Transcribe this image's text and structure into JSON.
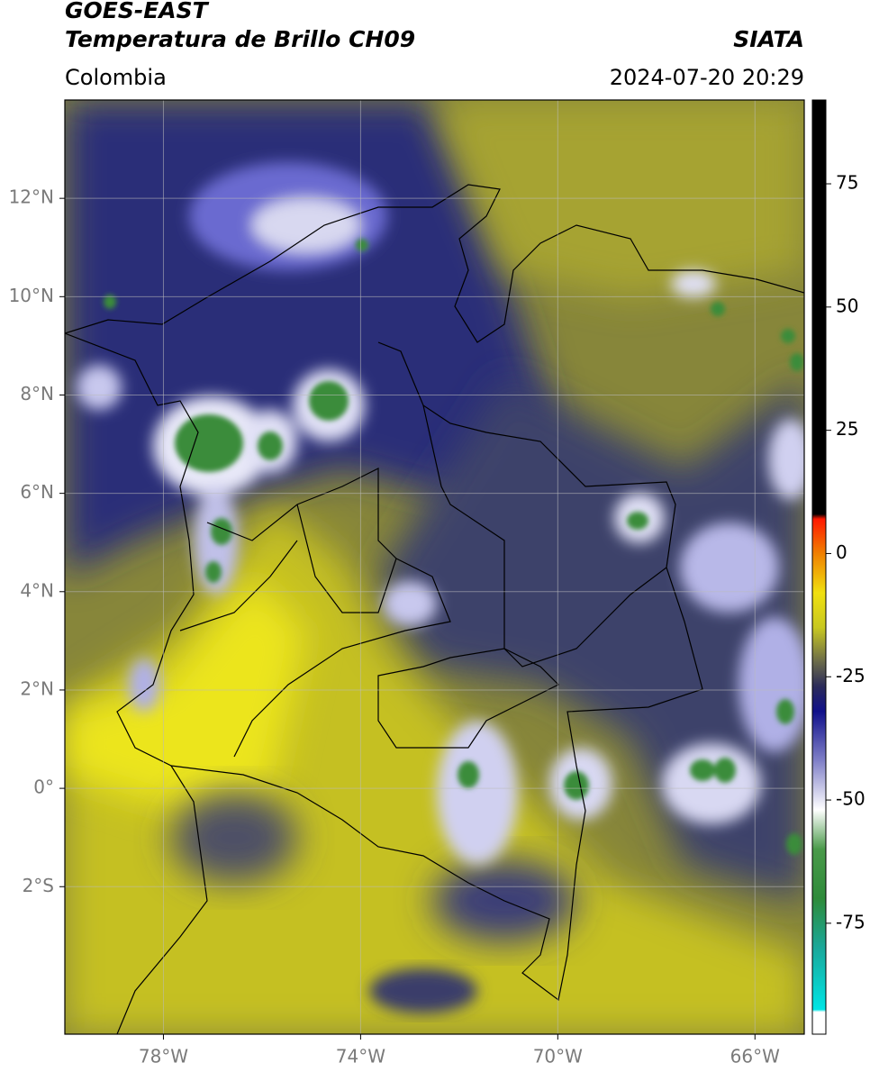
{
  "header": {
    "title": "GOES-EAST",
    "subtitle": "Temperatura de Brillo CH09",
    "source": "SIATA",
    "region": "Colombia",
    "datetime": "2024-07-20 20:29"
  },
  "map": {
    "xlim": [
      -80,
      -65
    ],
    "ylim": [
      -5,
      14
    ],
    "grid": true,
    "xticks": [
      {
        "value": -78,
        "label": "78°W"
      },
      {
        "value": -74,
        "label": "74°W"
      },
      {
        "value": -70,
        "label": "70°W"
      },
      {
        "value": -66,
        "label": "66°W"
      }
    ],
    "yticks": [
      {
        "value": 12,
        "label": "12°N"
      },
      {
        "value": 10,
        "label": "10°N"
      },
      {
        "value": 8,
        "label": "8°N"
      },
      {
        "value": 6,
        "label": "6°N"
      },
      {
        "value": 4,
        "label": "4°N"
      },
      {
        "value": 2,
        "label": "2°N"
      },
      {
        "value": 0,
        "label": "0°"
      },
      {
        "value": -2,
        "label": "2°S"
      }
    ]
  },
  "colorbar": {
    "ylim": [
      -97.5,
      92
    ],
    "ticks": [
      75,
      50,
      25,
      0,
      -25,
      -50,
      -75
    ],
    "stops": [
      {
        "value": -97.5,
        "color": "#ffffff"
      },
      {
        "value": -93,
        "color": "#ffffff"
      },
      {
        "value": -92.5,
        "color": "#00e5e5"
      },
      {
        "value": -80,
        "color": "#1aa89a"
      },
      {
        "value": -70,
        "color": "#2e8b3a"
      },
      {
        "value": -60,
        "color": "#4a9a4a"
      },
      {
        "value": -52,
        "color": "#ffffff"
      },
      {
        "value": -42,
        "color": "#8080c8"
      },
      {
        "value": -32,
        "color": "#10108a"
      },
      {
        "value": -27,
        "color": "#2a2a5a"
      },
      {
        "value": -22,
        "color": "#6a6a4a"
      },
      {
        "value": -15,
        "color": "#c8c820"
      },
      {
        "value": -8,
        "color": "#f0e010"
      },
      {
        "value": 0,
        "color": "#f08000"
      },
      {
        "value": 7,
        "color": "#ff1800"
      },
      {
        "value": 8,
        "color": "#000000"
      },
      {
        "value": 92,
        "color": "#000000"
      }
    ]
  }
}
